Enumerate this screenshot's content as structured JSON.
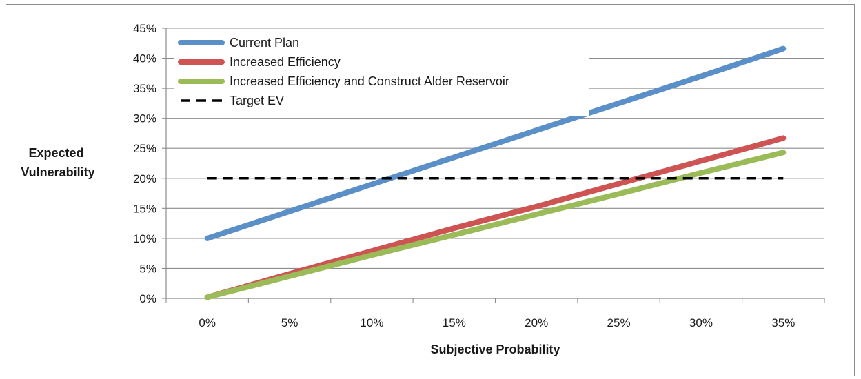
{
  "chart_data": {
    "type": "line",
    "xlabel": "Subjective Probability",
    "ylabel_lines": [
      "Expected",
      "Vulnerability"
    ],
    "x_categories": [
      "0%",
      "5%",
      "10%",
      "15%",
      "20%",
      "25%",
      "30%",
      "35%"
    ],
    "x": [
      0,
      5,
      10,
      15,
      20,
      25,
      30,
      35
    ],
    "xlim": [
      -2.5,
      37.5
    ],
    "ylim": [
      0,
      45
    ],
    "y_ticks": [
      0,
      5,
      10,
      15,
      20,
      25,
      30,
      35,
      40,
      45
    ],
    "y_tick_labels": [
      "0%",
      "5%",
      "10%",
      "15%",
      "20%",
      "25%",
      "30%",
      "35%",
      "40%",
      "45%"
    ],
    "grid": "horizontal",
    "legend_position": "top-left",
    "series": [
      {
        "name": "Current Plan",
        "color": "#5b8fc8",
        "dashed": false,
        "values": [
          10,
          14.5,
          19,
          23.5,
          28,
          32.5,
          37,
          41.6
        ]
      },
      {
        "name": "Increased Efficiency",
        "color": "#cd5452",
        "dashed": false,
        "values": [
          0.2,
          4.1,
          7.9,
          11.7,
          15.3,
          19.1,
          22.9,
          26.7
        ]
      },
      {
        "name": "Increased Efficiency and Construct Alder Reservoir",
        "color": "#9bbb59",
        "dashed": false,
        "values": [
          0.2,
          3.7,
          7.2,
          10.6,
          14,
          17.4,
          20.9,
          24.3
        ]
      },
      {
        "name": "Target EV",
        "color": "#000000",
        "dashed": true,
        "values": [
          20,
          20,
          20,
          20,
          20,
          20,
          20,
          20
        ]
      }
    ]
  }
}
